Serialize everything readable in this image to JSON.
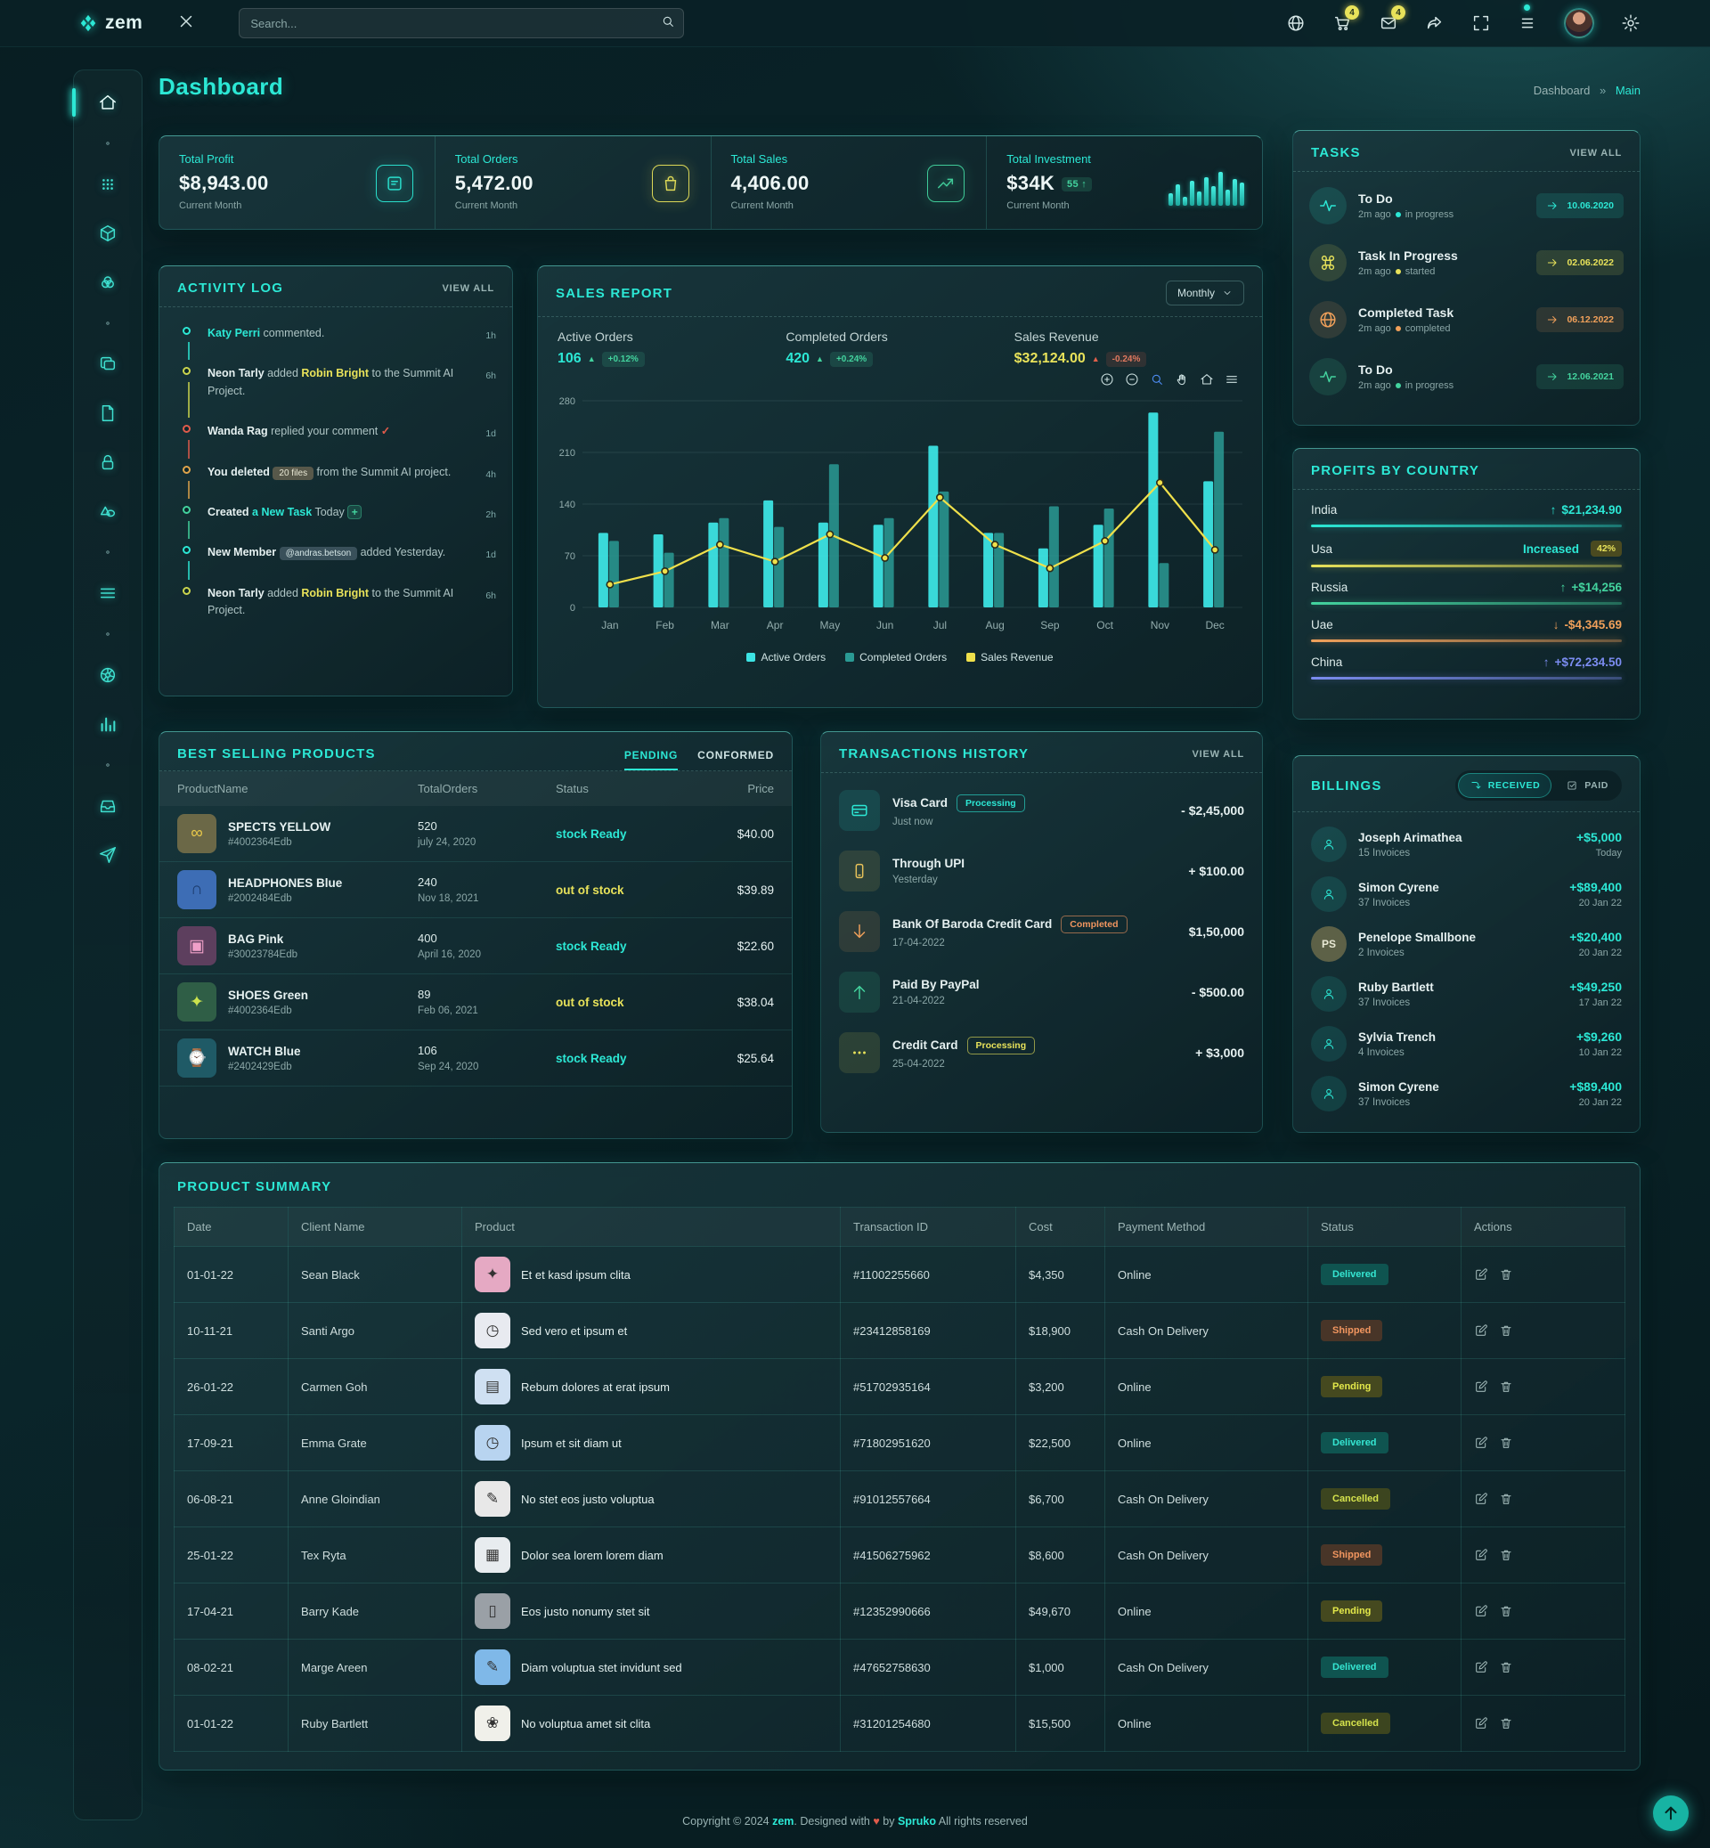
{
  "colors": {
    "accent": "#2ce8d5",
    "yellow": "#e8e25a",
    "green": "#43d39e",
    "orange": "#f0a05a",
    "red": "#e05b4b",
    "blue": "#7b8cf0"
  },
  "app": {
    "name": "zem",
    "page_title": "Dashboard",
    "breadcrumb": [
      "Dashboard",
      "Main"
    ]
  },
  "header": {
    "search_placeholder": "Search...",
    "icons": [
      {
        "icon": "globe"
      },
      {
        "icon": "cart",
        "badge": "4"
      },
      {
        "icon": "mail",
        "badge": "4"
      },
      {
        "icon": "share"
      },
      {
        "icon": "expand"
      },
      {
        "icon": "listlines",
        "dot": true
      },
      {
        "icon": "avatar"
      },
      {
        "icon": "gear"
      }
    ]
  },
  "sidebar": {
    "items": [
      "home",
      "dot",
      "grid",
      "cube",
      "venn",
      "dot",
      "copy",
      "file",
      "lock",
      "shapes",
      "dot",
      "menu",
      "dot",
      "wheel",
      "bars",
      "dot",
      "inbox",
      "send"
    ]
  },
  "stats": {
    "cards": [
      {
        "label": "Total Profit",
        "value": "$8,943.00",
        "sub": "Current Month",
        "icon": "note",
        "color": "#2ce8d5"
      },
      {
        "label": "Total Orders",
        "value": "5,472.00",
        "sub": "Current Month",
        "icon": "bag",
        "color": "#e8e25a"
      },
      {
        "label": "Total Sales",
        "value": "4,406.00",
        "sub": "Current Month",
        "icon": "trend",
        "color": "#43d39e"
      },
      {
        "label": "Total Investment",
        "value": "$34K",
        "badge": "55",
        "sub": "Current Month"
      }
    ],
    "mini_bars": [
      14,
      24,
      10,
      28,
      16,
      32,
      22,
      38,
      18,
      30,
      26
    ]
  },
  "tasks": {
    "title": "TASKS",
    "view_all": "VIEW ALL",
    "items": [
      {
        "title": "To Do",
        "time": "2m ago",
        "status": "in progress",
        "date": "10.06.2020",
        "color": "#2ce8d5",
        "icon": "pulse"
      },
      {
        "title": "Task In Progress",
        "time": "2m ago",
        "status": "started",
        "date": "02.06.2022",
        "color": "#e8e25a",
        "icon": "command"
      },
      {
        "title": "Completed Task",
        "time": "2m ago",
        "status": "completed",
        "date": "06.12.2022",
        "color": "#f0a05a",
        "icon": "globe"
      },
      {
        "title": "To Do",
        "time": "2m ago",
        "status": "in progress",
        "date": "12.06.2021",
        "color": "#43d39e",
        "icon": "pulse"
      }
    ]
  },
  "activity": {
    "title": "ACTIVITY LOG",
    "view_all": "VIEW ALL",
    "items": [
      {
        "time": "1h",
        "dot": "#2ce8d5",
        "segments": [
          {
            "t": "Katy Perri",
            "c": "n-teal"
          },
          {
            "t": " commented.",
            "c": ""
          }
        ]
      },
      {
        "time": "6h",
        "dot": "#cbd54d",
        "segments": [
          {
            "t": "Neon Tarly",
            "c": "n-white"
          },
          {
            "t": " added ",
            "c": ""
          },
          {
            "t": "Robin Bright",
            "c": "n-yellow"
          },
          {
            "t": " to the Summit AI Project.",
            "c": ""
          }
        ]
      },
      {
        "time": "1d",
        "dot": "#e05b4b",
        "segments": [
          {
            "t": "Wanda Rag",
            "c": "n-white"
          },
          {
            "t": " replied your comment ",
            "c": ""
          },
          {
            "t": "✓",
            "c": "n-red"
          }
        ]
      },
      {
        "time": "4h",
        "dot": "#e0a44b",
        "segments": [
          {
            "t": "You deleted ",
            "c": "n-white"
          },
          {
            "t": "20 files",
            "c": "chip"
          },
          {
            "t": " from the Summit AI project.",
            "c": ""
          }
        ]
      },
      {
        "time": "2h",
        "dot": "#43d39e",
        "segments": [
          {
            "t": "Created ",
            "c": "n-white"
          },
          {
            "t": "a New Task",
            "c": "n-teal"
          },
          {
            "t": " Today ",
            "c": ""
          },
          {
            "t": "+",
            "c": "plus"
          }
        ]
      },
      {
        "time": "1d",
        "dot": "#2ce8d5",
        "segments": [
          {
            "t": "New Member ",
            "c": "n-white"
          },
          {
            "t": "@andras.betson",
            "c": "chip-at"
          },
          {
            "t": " added Yesterday.",
            "c": ""
          }
        ]
      },
      {
        "time": "6h",
        "dot": "#cbd54d",
        "segments": [
          {
            "t": "Neon Tarly",
            "c": "n-white"
          },
          {
            "t": " added ",
            "c": ""
          },
          {
            "t": "Robin Bright",
            "c": "n-yellow"
          },
          {
            "t": " to the Summit AI Project.",
            "c": ""
          }
        ]
      }
    ]
  },
  "sales_report": {
    "title": "SALES REPORT",
    "period": "Monthly",
    "stats": [
      {
        "label": "Active Orders",
        "value": "106",
        "value_color": "#2ce8d5",
        "dir": "up",
        "dir_color": "#43d39e",
        "delta": "+0.12%",
        "delta_style": "bad-g"
      },
      {
        "label": "Completed Orders",
        "value": "420",
        "value_color": "#2ce8d5",
        "dir": "up",
        "dir_color": "#43d39e",
        "delta": "+0.24%",
        "delta_style": "bad-g"
      },
      {
        "label": "Sales Revenue",
        "value": "$32,124.00",
        "value_color": "#e8e25a",
        "dir": "up",
        "dir_color": "#e0604b",
        "delta": "-0.24%",
        "delta_style": "bad-r"
      }
    ],
    "toolbar": [
      "zoom-in",
      "zoom-out",
      "zoom-select",
      "pan",
      "home",
      "menu"
    ],
    "chart_data": {
      "type": "bar",
      "categories": [
        "Jan",
        "Feb",
        "Mar",
        "Apr",
        "May",
        "Jun",
        "Jul",
        "Aug",
        "Sep",
        "Oct",
        "Nov",
        "Dec"
      ],
      "series": [
        {
          "name": "Active Orders",
          "type": "bar",
          "color": "#3ce3e3",
          "values": [
            101,
            99,
            115,
            145,
            115,
            112,
            219,
            101,
            80,
            112,
            264,
            171
          ]
        },
        {
          "name": "Completed Orders",
          "type": "bar",
          "color": "#2a9a94",
          "values": [
            90,
            74,
            121,
            109,
            194,
            121,
            157,
            101,
            137,
            134,
            60,
            238
          ]
        },
        {
          "name": "Sales Revenue",
          "type": "line",
          "color": "#efe04b",
          "values": [
            31,
            49,
            85,
            62,
            99,
            67,
            149,
            85,
            53,
            90,
            169,
            78
          ]
        }
      ],
      "ylim": [
        0,
        280
      ],
      "yticks": [
        0,
        70,
        140,
        210,
        280
      ],
      "grid": true,
      "legend_position": "bottom"
    }
  },
  "profits": {
    "title": "PROFITS BY COUNTRY",
    "rows": [
      {
        "country": "India",
        "value": "$21,234.90",
        "arrow": "up",
        "color": "#2ce8d5"
      },
      {
        "country": "Usa",
        "value": "Increased",
        "badge": "42%",
        "color": "#e8e25a",
        "value_color": "#2ce8d5"
      },
      {
        "country": "Russia",
        "value": "+$14,256",
        "arrow": "up",
        "color": "#43d39e"
      },
      {
        "country": "Uae",
        "value": "-$4,345.69",
        "arrow": "down",
        "color": "#f0a05a"
      },
      {
        "country": "China",
        "value": "+$72,234.50",
        "arrow": "up",
        "color": "#7b8cf0"
      }
    ]
  },
  "best_selling": {
    "title": "BEST SELLING PRODUCTS",
    "tabs": [
      "PENDING",
      "CONFORMED"
    ],
    "active_tab": 0,
    "columns": [
      "ProductName",
      "TotalOrders",
      "Status",
      "Price"
    ],
    "rows": [
      {
        "name": "SPECTS YELLOW",
        "sku": "#4002364Edb",
        "orders": "520",
        "date": "july 24, 2020",
        "status": "stock Ready",
        "status_style": "st-teal",
        "price": "$40.00",
        "thumb_bg": "#6b6847",
        "glyph": "∞",
        "glyph_color": "#e8c84a"
      },
      {
        "name": "HEADPHONES Blue",
        "sku": "#2002484Edb",
        "orders": "240",
        "date": "Nov 18, 2021",
        "status": "out of stock",
        "status_style": "st-yellow",
        "price": "$39.89",
        "thumb_bg": "#3d6db5",
        "glyph": "∩",
        "glyph_color": "#1a3a6b"
      },
      {
        "name": "BAG Pink",
        "sku": "#30023784Edb",
        "orders": "400",
        "date": "April 16, 2020",
        "status": "stock Ready",
        "status_style": "st-teal",
        "price": "$22.60",
        "thumb_bg": "#5d3f5e",
        "glyph": "▣",
        "glyph_color": "#f0a0c8"
      },
      {
        "name": "SHOES Green",
        "sku": "#4002364Edb",
        "orders": "89",
        "date": "Feb 06, 2021",
        "status": "out of stock",
        "status_style": "st-yellow",
        "price": "$38.04",
        "thumb_bg": "#2f5e46",
        "glyph": "✦",
        "glyph_color": "#cbe34d"
      },
      {
        "name": "WATCH Blue",
        "sku": "#2402429Edb",
        "orders": "106",
        "date": "Sep 24, 2020",
        "status": "stock Ready",
        "status_style": "st-teal",
        "price": "$25.64",
        "thumb_bg": "#1f5a66",
        "glyph": "⌚",
        "glyph_color": "#9fd4f0"
      }
    ]
  },
  "transactions": {
    "title": "TRANSACTIONS HISTORY",
    "view_all": "VIEW ALL",
    "items": [
      {
        "name": "Visa Card",
        "badge": "Processing",
        "badge_style": "txb-teal",
        "date": "Just now",
        "amount": "- $2,45,000",
        "icon": "card",
        "color": "#2ce8d5"
      },
      {
        "name": "Through UPI",
        "date": "Yesterday",
        "amount": "+ $100.00",
        "icon": "phone",
        "color": "#e8c25a"
      },
      {
        "name": "Bank Of Baroda Credit Card",
        "badge": "Completed",
        "badge_style": "txb-orange",
        "date": "17-04-2022",
        "amount": "$1,50,000",
        "icon": "arrowDown",
        "color": "#f0a05a"
      },
      {
        "name": "Paid By PayPal",
        "date": "21-04-2022",
        "amount": "- $500.00",
        "icon": "arrowUp",
        "color": "#43d39e"
      },
      {
        "name": "Credit Card",
        "badge": "Processing",
        "badge_style": "txb-yellow",
        "date": "25-04-2022",
        "amount": "+ $3,000",
        "icon": "dots",
        "color": "#e8e25a"
      }
    ]
  },
  "billings": {
    "title": "BILLINGS",
    "toggle": [
      "RECEIVED",
      "PAID"
    ],
    "active_toggle": 0,
    "rows": [
      {
        "name": "Joseph Arimathea",
        "invoices": "15 Invoices",
        "amount": "+$5,000",
        "date": "Today",
        "avatar": "person"
      },
      {
        "name": "Simon Cyrene",
        "invoices": "37 Invoices",
        "amount": "+$89,400",
        "date": "20 Jan 22",
        "avatar": "person"
      },
      {
        "name": "Penelope Smallbone",
        "invoices": "2 Invoices",
        "amount": "+$20,400",
        "date": "20 Jan 22",
        "avatar": "PS"
      },
      {
        "name": "Ruby Bartlett",
        "invoices": "37 Invoices",
        "amount": "+$49,250",
        "date": "17 Jan 22",
        "avatar": "person"
      },
      {
        "name": "Sylvia Trench",
        "invoices": "4 Invoices",
        "amount": "+$9,260",
        "date": "10 Jan 22",
        "avatar": "person"
      },
      {
        "name": "Simon Cyrene",
        "invoices": "37 Invoices",
        "amount": "+$89,400",
        "date": "20 Jan 22",
        "avatar": "person"
      }
    ]
  },
  "summary": {
    "title": "PRODUCT SUMMARY",
    "columns": [
      "Date",
      "Client Name",
      "Product",
      "Transaction ID",
      "Cost",
      "Payment Method",
      "Status",
      "Actions"
    ],
    "rows": [
      {
        "date": "01-01-22",
        "client": "Sean Black",
        "product": "Et et kasd ipsum clita",
        "txn": "#11002255660",
        "cost": "$4,350",
        "pay": "Online",
        "status": "Delivered",
        "thumb_bg": "#e5a9c3",
        "glyph": "✦"
      },
      {
        "date": "10-11-21",
        "client": "Santi Argo",
        "product": "Sed vero et ipsum et",
        "txn": "#23412858169",
        "cost": "$18,900",
        "pay": "Cash On Delivery",
        "status": "Shipped",
        "thumb_bg": "#e8eaf0",
        "glyph": "◷"
      },
      {
        "date": "26-01-22",
        "client": "Carmen Goh",
        "product": "Rebum dolores at erat ipsum",
        "txn": "#51702935164",
        "cost": "$3,200",
        "pay": "Online",
        "status": "Pending",
        "thumb_bg": "#cfe0f2",
        "glyph": "▤"
      },
      {
        "date": "17-09-21",
        "client": "Emma Grate",
        "product": "Ipsum et sit diam ut",
        "txn": "#71802951620",
        "cost": "$22,500",
        "pay": "Online",
        "status": "Delivered",
        "thumb_bg": "#b8d4f0",
        "glyph": "◷"
      },
      {
        "date": "06-08-21",
        "client": "Anne Gloindian",
        "product": "No stet eos justo voluptua",
        "txn": "#91012557664",
        "cost": "$6,700",
        "pay": "Cash On Delivery",
        "status": "Cancelled",
        "thumb_bg": "#e8e8e8",
        "glyph": "✎"
      },
      {
        "date": "25-01-22",
        "client": "Tex Ryta",
        "product": "Dolor sea lorem lorem diam",
        "txn": "#41506275962",
        "cost": "$8,600",
        "pay": "Cash On Delivery",
        "status": "Shipped",
        "thumb_bg": "#e8ecef",
        "glyph": "▦"
      },
      {
        "date": "17-04-21",
        "client": "Barry Kade",
        "product": "Eos justo nonumy stet sit",
        "txn": "#12352990666",
        "cost": "$49,670",
        "pay": "Online",
        "status": "Pending",
        "thumb_bg": "#9aa0a6",
        "glyph": "▯"
      },
      {
        "date": "08-02-21",
        "client": "Marge Areen",
        "product": "Diam voluptua stet invidunt sed",
        "txn": "#47652758630",
        "cost": "$1,000",
        "pay": "Cash On Delivery",
        "status": "Delivered",
        "thumb_bg": "#7fb8e8",
        "glyph": "✎"
      },
      {
        "date": "01-01-22",
        "client": "Ruby Bartlett",
        "product": "No voluptua amet sit clita",
        "txn": "#31201254680",
        "cost": "$15,500",
        "pay": "Online",
        "status": "Cancelled",
        "thumb_bg": "#f0f0ea",
        "glyph": "❀"
      }
    ]
  },
  "footer": {
    "pre": "Copyright © 2024 ",
    "brand": "zem",
    "mid": ". Designed with ",
    "heart": "♥",
    "by": " by ",
    "vendor": "Spruko",
    "post": " All rights reserved"
  }
}
